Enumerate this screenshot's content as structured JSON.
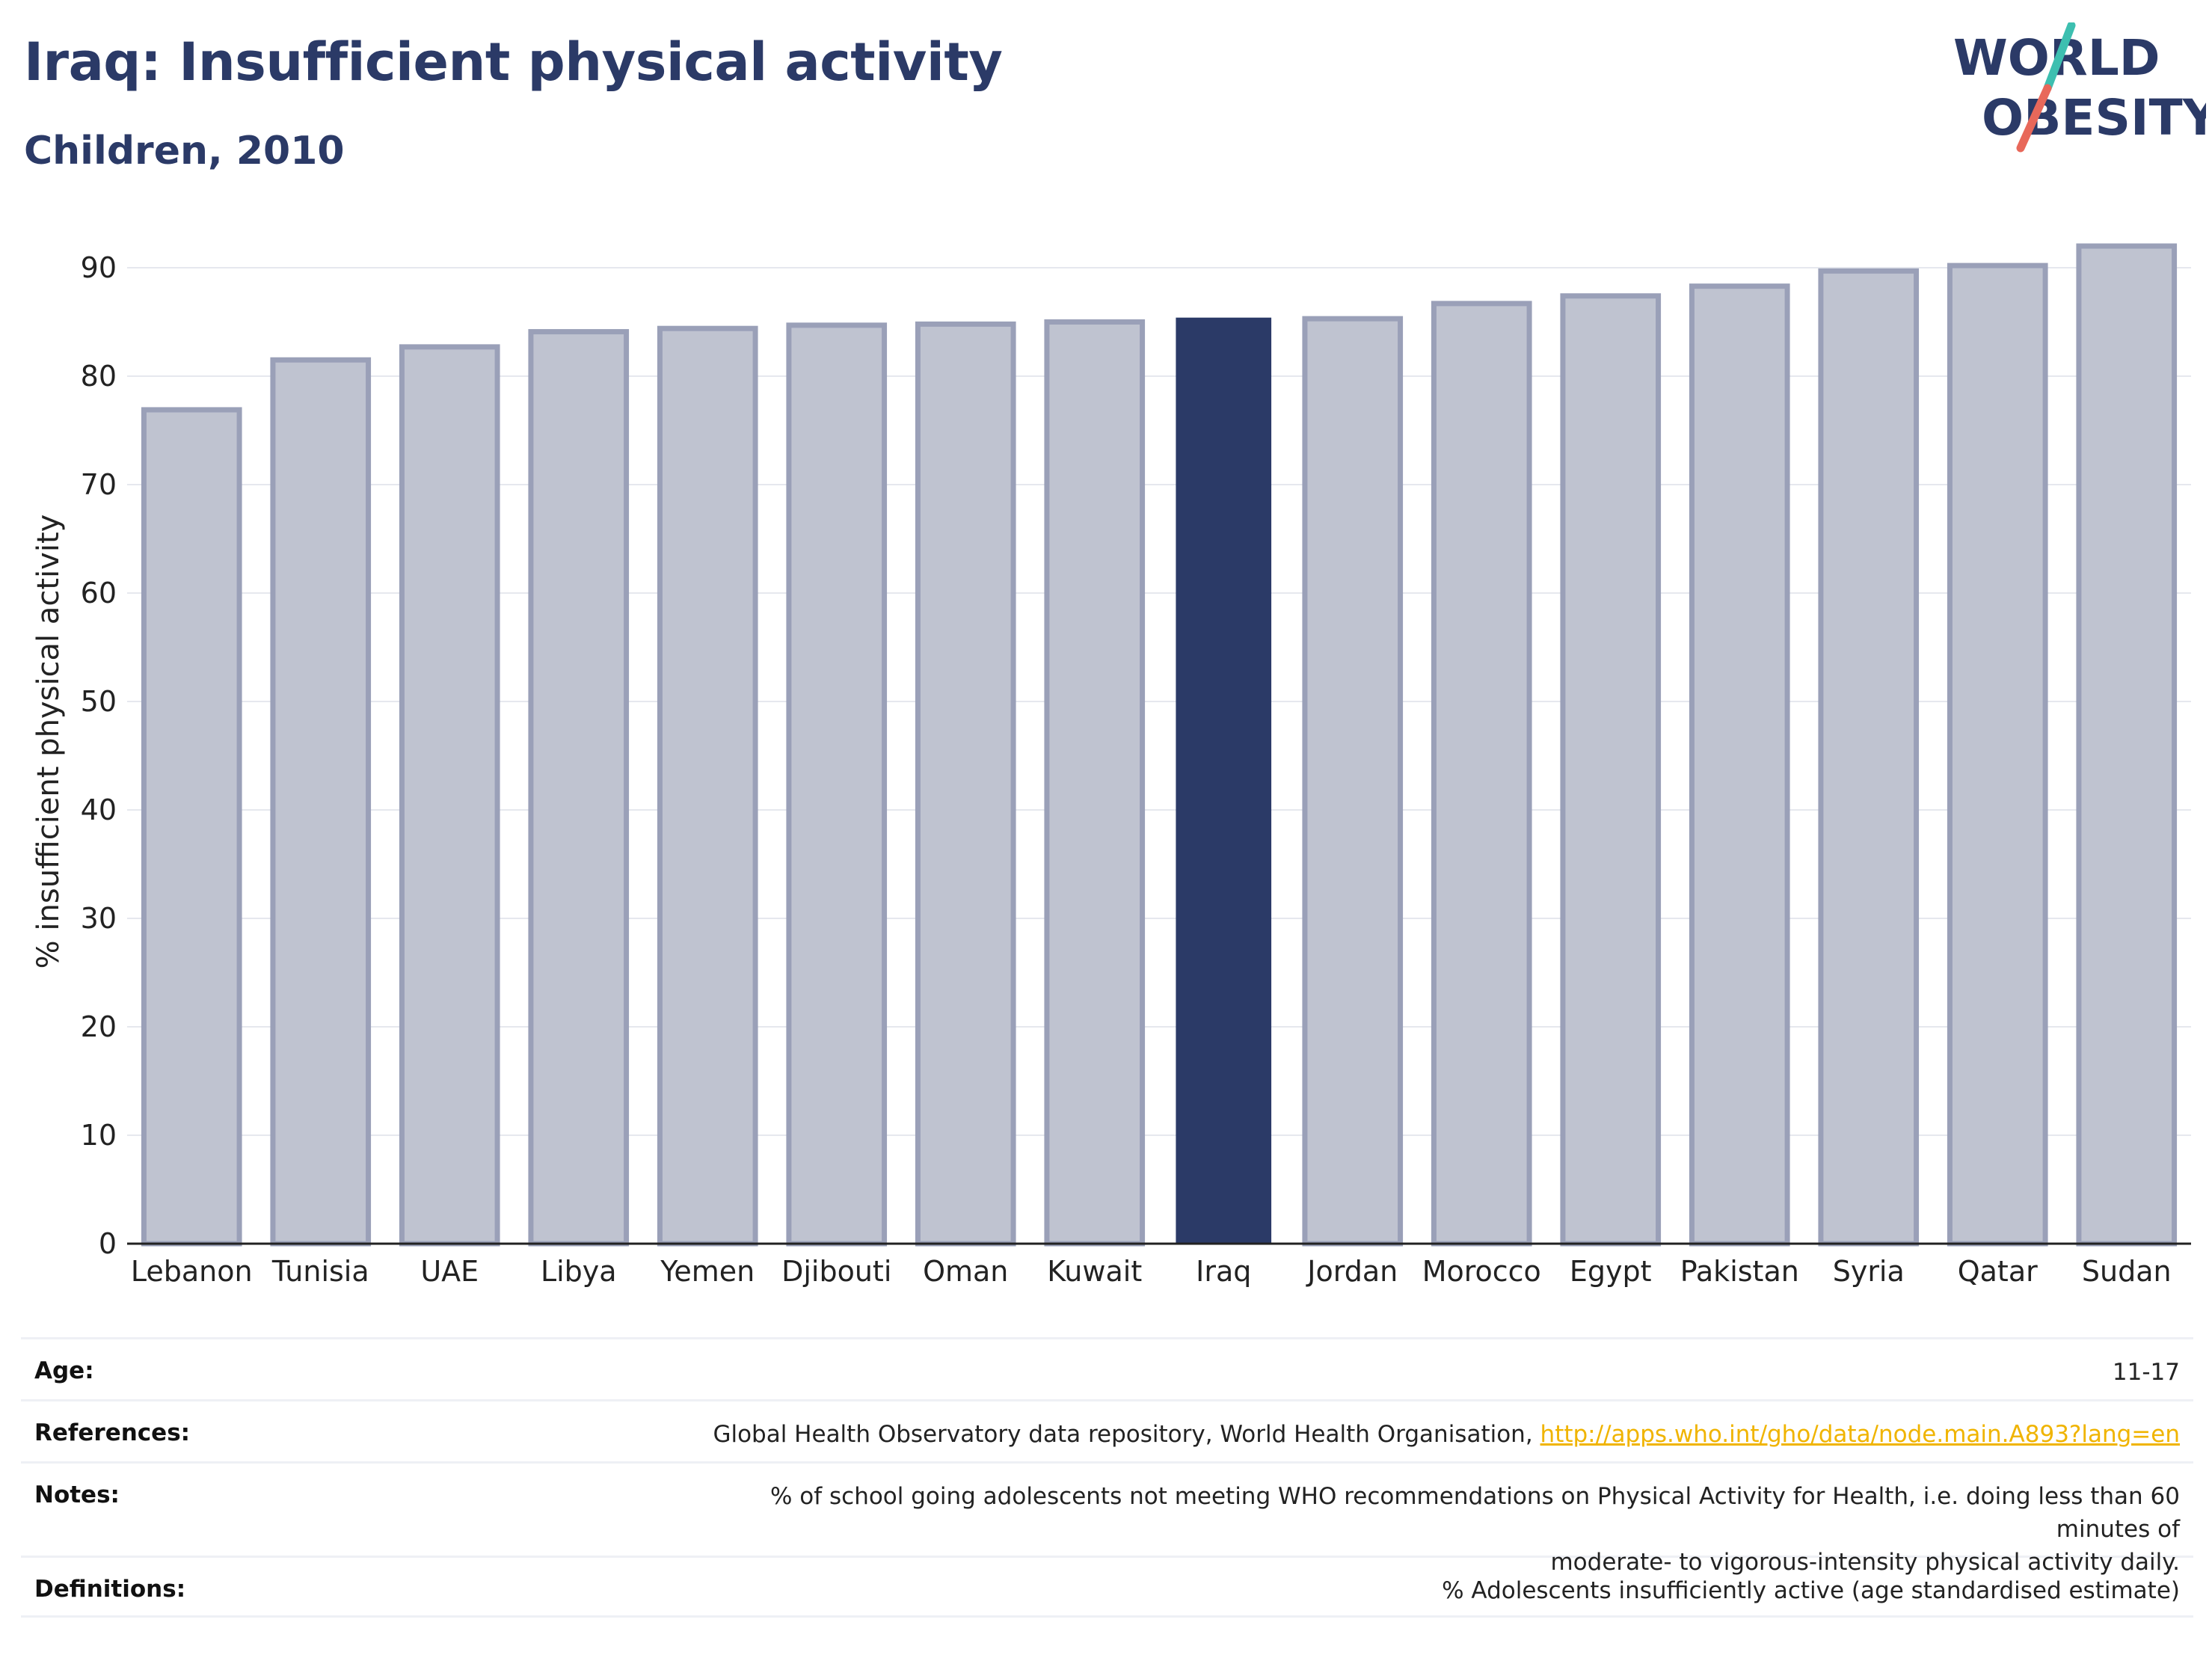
{
  "header": {
    "title": "Iraq: Insufficient physical activity",
    "subtitle": "Children, 2010"
  },
  "logo": {
    "line1": "WORLD",
    "line2": "OBESITY",
    "icon": "world-obesity-logo",
    "colors": {
      "text": "#2b3a67",
      "slash_top": "#3dbfb0",
      "slash_bottom": "#e8685a"
    }
  },
  "colors": {
    "highlight": "#2b3a67",
    "bar": "#bfc3d0",
    "bar_outline": "#9aa0b8",
    "grid": "#e6e8ee",
    "axis_text": "#222222",
    "link": "#f0b400"
  },
  "chart_data": {
    "type": "bar",
    "title": "Iraq: Insufficient physical activity",
    "subtitle": "Children, 2010",
    "xlabel": "",
    "ylabel": "% insufficient physical activity",
    "categories": [
      "Lebanon",
      "Tunisia",
      "UAE",
      "Libya",
      "Yemen",
      "Djibouti",
      "Oman",
      "Kuwait",
      "Iraq",
      "Jordan",
      "Morocco",
      "Egypt",
      "Pakistan",
      "Syria",
      "Qatar",
      "Sudan"
    ],
    "values": [
      76.9,
      81.5,
      82.7,
      84.1,
      84.4,
      84.7,
      84.8,
      85.0,
      85.4,
      85.3,
      86.7,
      87.4,
      88.3,
      89.7,
      90.2,
      92.0
    ],
    "highlight": "Iraq",
    "ylim": [
      0,
      94
    ],
    "yticks": [
      0,
      10,
      20,
      30,
      40,
      50,
      60,
      70,
      80,
      90
    ],
    "grid": true,
    "legend": "none"
  },
  "info": {
    "age": {
      "label": "Age:",
      "value": "11-17"
    },
    "references": {
      "label": "References:",
      "text": "Global Health Observatory data repository, World Health Organisation, ",
      "link": "http://apps.who.int/gho/data/node.main.A893?lang=en"
    },
    "notes": {
      "label": "Notes:",
      "line1": "% of school going adolescents not meeting WHO recommendations on Physical Activity for Health, i.e. doing less than 60 minutes of",
      "line2": "moderate- to vigorous-intensity physical activity daily."
    },
    "definitions": {
      "label": "Definitions:",
      "value": "% Adolescents insufficiently active (age standardised estimate)"
    }
  }
}
